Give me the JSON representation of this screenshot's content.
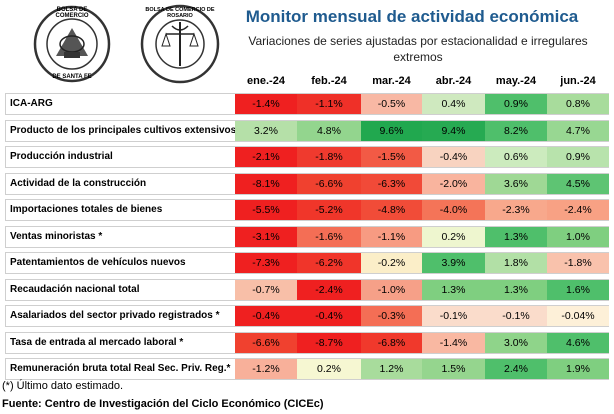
{
  "header": {
    "title": "Monitor mensual de actividad económica",
    "subtitle_line1": "Variaciones de series ajustadas por estacionalidad e irregulares",
    "subtitle_line2": "extremos"
  },
  "logos": {
    "bolsa_text_top": "BOLSA DE COMERCIO",
    "bolsa_text_bottom": "DE SANTA FE",
    "rosario_text": "BOLSA DE COMERCIO DE ROSARIO"
  },
  "months": [
    "ene.-24",
    "feb.-24",
    "mar.-24",
    "abr.-24",
    "may.-24",
    "jun.-24"
  ],
  "rows": [
    {
      "label": "ICA-ARG",
      "values": [
        "-1.4%",
        "-1.1%",
        "-0.5%",
        "0.4%",
        "0.9%",
        "0.8%"
      ],
      "colors": [
        "#ef2020",
        "#ef3028",
        "#f8b8a4",
        "#cfe9bf",
        "#4fbf6b",
        "#a8dc9c"
      ]
    },
    {
      "label": "Producto de los principales cultivos extensivos",
      "values": [
        "3.2%",
        "4.8%",
        "9.6%",
        "9.4%",
        "8.2%",
        "4.7%"
      ],
      "colors": [
        "#b5e0a8",
        "#93d58e",
        "#21a84f",
        "#26aa52",
        "#4fbf6b",
        "#98d792"
      ]
    },
    {
      "label": "Producción industrial",
      "values": [
        "-2.1%",
        "-1.8%",
        "-1.5%",
        "-0.4%",
        "0.6%",
        "0.9%"
      ],
      "colors": [
        "#ef2020",
        "#ef3a2e",
        "#f25a45",
        "#f8d3c0",
        "#ccebbe",
        "#b8e3ac"
      ]
    },
    {
      "label": "Actividad de la construcción",
      "values": [
        "-8.1%",
        "-6.6%",
        "-6.3%",
        "-2.0%",
        "3.6%",
        "4.5%"
      ],
      "colors": [
        "#ef2020",
        "#f0412f",
        "#f14a38",
        "#f9b49e",
        "#9fd895",
        "#5ec473"
      ]
    },
    {
      "label": "Importaciones totales de bienes",
      "values": [
        "-5.5%",
        "-5.2%",
        "-4.8%",
        "-4.0%",
        "-2.3%",
        "-2.4%"
      ],
      "colors": [
        "#ef2020",
        "#f0362a",
        "#f14c38",
        "#f47458",
        "#f8a88c",
        "#f8a184"
      ]
    },
    {
      "label": "Ventas minoristas *",
      "values": [
        "-3.1%",
        "-1.6%",
        "-1.1%",
        "0.2%",
        "1.3%",
        "1.0%"
      ],
      "colors": [
        "#ef2020",
        "#f46e55",
        "#f79b82",
        "#eef6cf",
        "#4fbf6b",
        "#7fcf80"
      ]
    },
    {
      "label": "Patentamientos de vehículos nuevos",
      "values": [
        "-7.3%",
        "-6.2%",
        "-0.2%",
        "3.9%",
        "1.8%",
        "-1.8%"
      ],
      "colors": [
        "#ef2020",
        "#f0352a",
        "#fbeec8",
        "#4fbf6b",
        "#b2e0a6",
        "#f9c2ac"
      ]
    },
    {
      "label": "Recaudación nacional total",
      "values": [
        "-0.7%",
        "-2.4%",
        "-1.0%",
        "1.3%",
        "1.3%",
        "1.6%"
      ],
      "colors": [
        "#f8bfa8",
        "#ef2020",
        "#f6a088",
        "#7fcf80",
        "#7fcf80",
        "#4fbf6b"
      ]
    },
    {
      "label": "Asalariados del sector privado registrados *",
      "values": [
        "-0.4%",
        "-0.4%",
        "-0.3%",
        "-0.1%",
        "-0.1%",
        "-0.04%"
      ],
      "colors": [
        "#ef2020",
        "#ef2020",
        "#f46e55",
        "#fadccb",
        "#fadccb",
        "#fdf0d8"
      ]
    },
    {
      "label": "Tasa de entrada al mercado laboral *",
      "values": [
        "-6.6%",
        "-8.7%",
        "-6.8%",
        "-1.4%",
        "3.0%",
        "4.6%"
      ],
      "colors": [
        "#f0412f",
        "#ef2020",
        "#f0392c",
        "#f9b8a2",
        "#8fd48a",
        "#4fbf6b"
      ]
    },
    {
      "label": "Remuneración bruta total Real Sec. Priv. Reg.*",
      "values": [
        "-1.2%",
        "0.2%",
        "1.2%",
        "1.5%",
        "2.4%",
        "1.9%"
      ],
      "colors": [
        "#f8b09a",
        "#f6f7d2",
        "#a8dc9c",
        "#95d58e",
        "#4fbf6b",
        "#7fcf80"
      ]
    }
  ],
  "footer": {
    "note": "(*) Último dato estimado.",
    "source": "Fuente: Centro de Investigación del Ciclo Económico (CICEc)"
  }
}
